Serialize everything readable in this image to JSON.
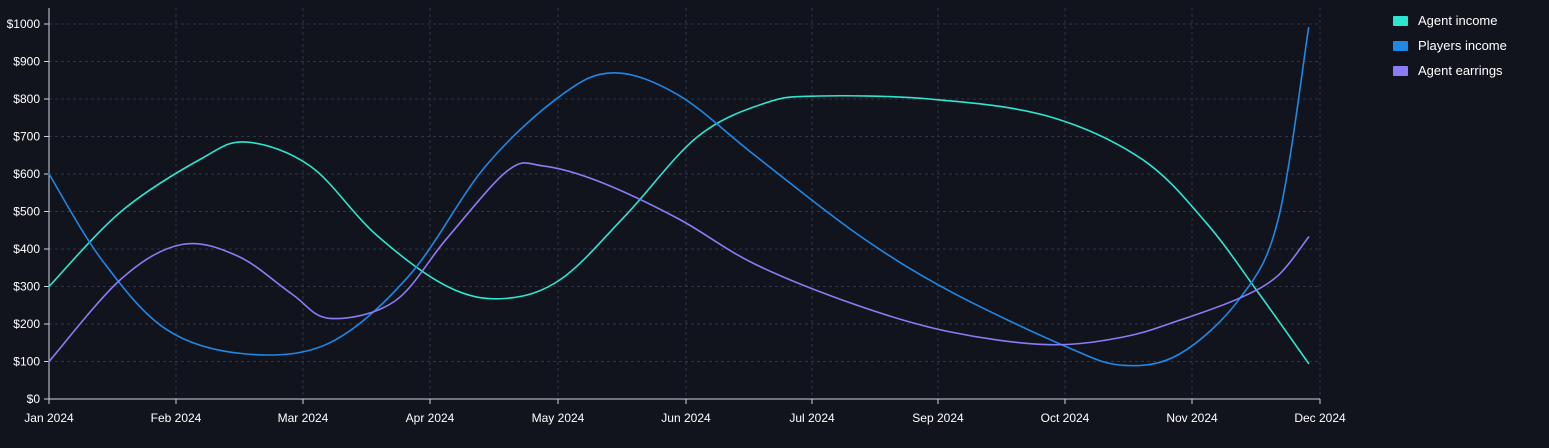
{
  "chart_data": {
    "type": "line",
    "title": "",
    "xlabel": "",
    "ylabel": "",
    "x_ticks": [
      "Jan 2024",
      "Feb 2024",
      "Mar 2024",
      "Apr 2024",
      "May 2024",
      "Jun 2024",
      "Jul 2024",
      "Sep 2024",
      "Oct 2024",
      "Nov 2024",
      "Dec 2024"
    ],
    "y_ticks": [
      "$0",
      "$100",
      "$200",
      "$300",
      "$400",
      "$500",
      "$600",
      "$700",
      "$800",
      "$900",
      "$1000"
    ],
    "ylim": [
      0,
      1000
    ],
    "xlim": [
      "2024-01-01",
      "2024-12-01"
    ],
    "grid": true,
    "legend_position": "top-right",
    "series": [
      {
        "name": "Agent income",
        "color": "#2ee6d0",
        "points": [
          [
            "2024-01-01",
            300
          ],
          [
            "2024-01-20",
            500
          ],
          [
            "2024-02-10",
            640
          ],
          [
            "2024-02-22",
            685
          ],
          [
            "2024-03-10",
            620
          ],
          [
            "2024-03-27",
            440
          ],
          [
            "2024-04-15",
            300
          ],
          [
            "2024-04-30",
            268
          ],
          [
            "2024-05-15",
            320
          ],
          [
            "2024-06-01",
            490
          ],
          [
            "2024-06-20",
            700
          ],
          [
            "2024-07-08",
            790
          ],
          [
            "2024-07-22",
            808
          ],
          [
            "2024-08-20",
            800
          ],
          [
            "2024-09-20",
            755
          ],
          [
            "2024-10-15",
            640
          ],
          [
            "2024-11-01",
            470
          ],
          [
            "2024-11-15",
            280
          ],
          [
            "2024-11-28",
            95
          ]
        ]
      },
      {
        "name": "Players income",
        "color": "#1e88e5",
        "points": [
          [
            "2024-01-01",
            600
          ],
          [
            "2024-01-15",
            370
          ],
          [
            "2024-02-01",
            185
          ],
          [
            "2024-02-22",
            120
          ],
          [
            "2024-03-15",
            150
          ],
          [
            "2024-04-05",
            330
          ],
          [
            "2024-04-25",
            620
          ],
          [
            "2024-05-15",
            810
          ],
          [
            "2024-05-29",
            870
          ],
          [
            "2024-06-15",
            810
          ],
          [
            "2024-07-05",
            650
          ],
          [
            "2024-08-01",
            440
          ],
          [
            "2024-08-25",
            290
          ],
          [
            "2024-09-25",
            140
          ],
          [
            "2024-10-10",
            90
          ],
          [
            "2024-10-25",
            120
          ],
          [
            "2024-11-10",
            270
          ],
          [
            "2024-11-20",
            480
          ],
          [
            "2024-11-28",
            990
          ]
        ]
      },
      {
        "name": "Agent earrings",
        "color": "#8b7cf6",
        "points": [
          [
            "2024-01-01",
            100
          ],
          [
            "2024-01-20",
            320
          ],
          [
            "2024-02-05",
            412
          ],
          [
            "2024-02-20",
            380
          ],
          [
            "2024-03-05",
            280
          ],
          [
            "2024-03-15",
            215
          ],
          [
            "2024-04-01",
            260
          ],
          [
            "2024-04-15",
            430
          ],
          [
            "2024-05-01",
            610
          ],
          [
            "2024-05-10",
            622
          ],
          [
            "2024-05-25",
            580
          ],
          [
            "2024-06-15",
            480
          ],
          [
            "2024-07-05",
            360
          ],
          [
            "2024-08-01",
            250
          ],
          [
            "2024-08-25",
            180
          ],
          [
            "2024-09-20",
            145
          ],
          [
            "2024-10-10",
            165
          ],
          [
            "2024-10-25",
            210
          ],
          [
            "2024-11-10",
            270
          ],
          [
            "2024-11-20",
            330
          ],
          [
            "2024-11-28",
            432
          ]
        ]
      }
    ]
  }
}
